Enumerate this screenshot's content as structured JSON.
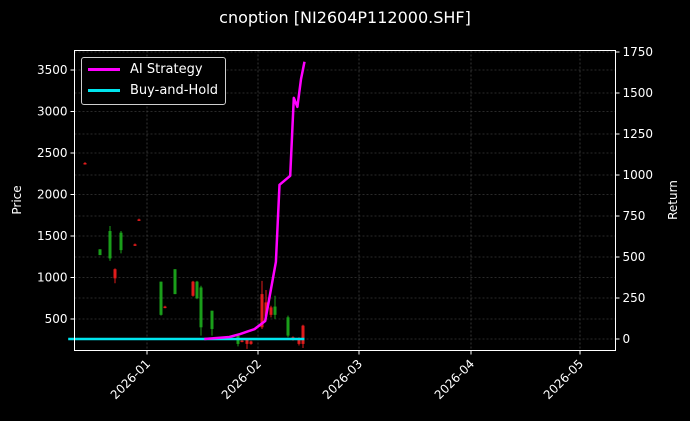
{
  "chart_data": {
    "type": "line",
    "title": "cnoption [NI2604P112000.SHF]",
    "xlabel": "",
    "ylabel": "Price",
    "ylabel_right": "Return",
    "ylim": [
      110,
      3700
    ],
    "ylim_right": [
      -70,
      1750
    ],
    "xticks": [
      "2026-01",
      "2026-02",
      "2026-03",
      "2026-04",
      "2026-05"
    ],
    "yticks_left": [
      500,
      1000,
      1500,
      2000,
      2500,
      3000,
      3500
    ],
    "yticks_right": [
      0,
      250,
      500,
      750,
      1000,
      1250,
      1500,
      1750
    ],
    "grid": true,
    "legend_position": "upper left",
    "legend": [
      "AI Strategy",
      "Buy-and-Hold"
    ],
    "series": [
      {
        "name": "AI Strategy",
        "axis": "right",
        "color": "#ff00ff",
        "x": [
          "2026-01-17",
          "2026-01-24",
          "2026-01-27",
          "2026-01-29",
          "2026-01-31",
          "2026-02-03",
          "2026-02-06",
          "2026-02-07",
          "2026-02-10",
          "2026-02-11",
          "2026-02-12",
          "2026-02-13",
          "2026-02-14"
        ],
        "values": [
          0,
          12,
          30,
          45,
          60,
          110,
          470,
          940,
          995,
          1470,
          1415,
          1585,
          1690
        ]
      },
      {
        "name": "Buy-and-Hold",
        "axis": "right",
        "color": "#00ffff",
        "x": [
          "2025-12-10",
          "2026-02-14"
        ],
        "values": [
          0,
          0
        ]
      }
    ],
    "candles": [
      {
        "x": 85,
        "open": 2380,
        "close": 2370,
        "high": 2390,
        "low": 2360,
        "dir": "down"
      },
      {
        "x": 100,
        "open": 1270,
        "close": 1340,
        "high": 1340,
        "low": 1270,
        "dir": "up"
      },
      {
        "x": 110,
        "open": 1230,
        "close": 1560,
        "high": 1620,
        "low": 1200,
        "dir": "up"
      },
      {
        "x": 115,
        "open": 1100,
        "close": 990,
        "high": 1110,
        "low": 930,
        "dir": "down"
      },
      {
        "x": 121,
        "open": 1330,
        "close": 1540,
        "high": 1560,
        "low": 1290,
        "dir": "up"
      },
      {
        "x": 135,
        "open": 1400,
        "close": 1390,
        "high": 1410,
        "low": 1380,
        "dir": "down"
      },
      {
        "x": 139,
        "open": 1700,
        "close": 1690,
        "high": 1710,
        "low": 1680,
        "dir": "down"
      },
      {
        "x": 161,
        "open": 550,
        "close": 950,
        "high": 950,
        "low": 540,
        "dir": "up"
      },
      {
        "x": 165,
        "open": 650,
        "close": 640,
        "high": 660,
        "low": 630,
        "dir": "down"
      },
      {
        "x": 175,
        "open": 800,
        "close": 1100,
        "high": 1100,
        "low": 800,
        "dir": "up"
      },
      {
        "x": 193,
        "open": 950,
        "close": 780,
        "high": 960,
        "low": 770,
        "dir": "down"
      },
      {
        "x": 197,
        "open": 750,
        "close": 950,
        "high": 960,
        "low": 740,
        "dir": "up"
      },
      {
        "x": 201,
        "open": 400,
        "close": 880,
        "high": 900,
        "low": 300,
        "dir": "up"
      },
      {
        "x": 212,
        "open": 380,
        "close": 600,
        "high": 600,
        "low": 300,
        "dir": "up"
      },
      {
        "x": 238,
        "open": 200,
        "close": 300,
        "high": 300,
        "low": 170,
        "dir": "up"
      },
      {
        "x": 242,
        "open": 240,
        "close": 230,
        "high": 250,
        "low": 220,
        "dir": "down"
      },
      {
        "x": 247,
        "open": 250,
        "close": 200,
        "high": 260,
        "low": 140,
        "dir": "down"
      },
      {
        "x": 251,
        "open": 230,
        "close": 200,
        "high": 240,
        "low": 190,
        "dir": "down"
      },
      {
        "x": 262,
        "open": 800,
        "close": 400,
        "high": 960,
        "low": 380,
        "dir": "down"
      },
      {
        "x": 266,
        "open": 700,
        "close": 530,
        "high": 850,
        "low": 500,
        "dir": "down"
      },
      {
        "x": 271,
        "open": 640,
        "close": 550,
        "high": 660,
        "low": 520,
        "dir": "down"
      },
      {
        "x": 275,
        "open": 550,
        "close": 650,
        "high": 780,
        "low": 500,
        "dir": "up"
      },
      {
        "x": 288,
        "open": 300,
        "close": 520,
        "high": 540,
        "low": 280,
        "dir": "up"
      },
      {
        "x": 293,
        "open": 280,
        "close": 260,
        "high": 290,
        "low": 240,
        "dir": "down"
      },
      {
        "x": 299,
        "open": 260,
        "close": 200,
        "high": 280,
        "low": 180,
        "dir": "down"
      },
      {
        "x": 303,
        "open": 420,
        "close": 200,
        "high": 430,
        "low": 150,
        "dir": "down"
      }
    ]
  },
  "colors": {
    "background": "#000000",
    "up": "#1a9e1a",
    "down": "#e01b1b",
    "grid": "#555555",
    "axis": "#ffffff"
  }
}
